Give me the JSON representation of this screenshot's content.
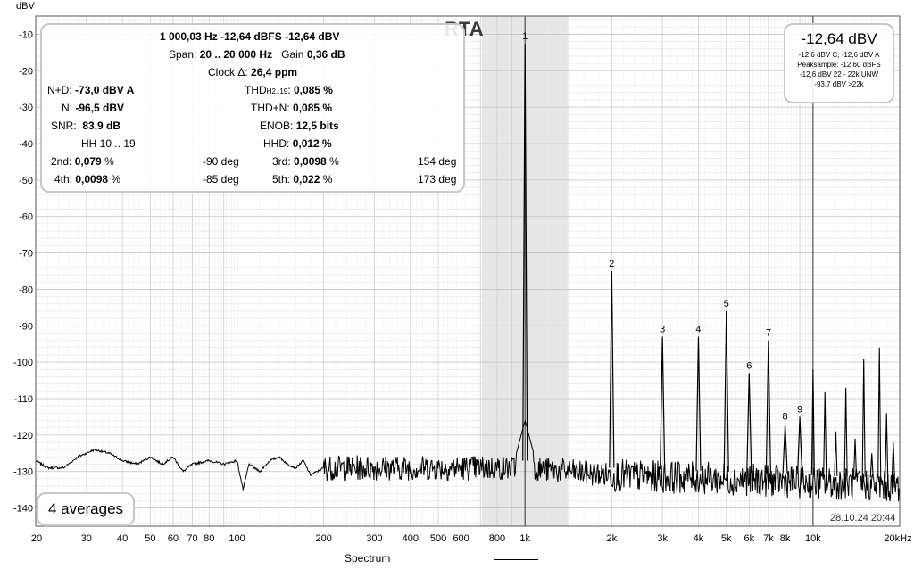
{
  "title": "RTA",
  "y_axis_unit": "dBV",
  "measurements": {
    "line1": "1 000,03 Hz  -12,64 dBFS  -12,64 dBV",
    "span_label": "Span:",
    "span_value": "20 .. 20 000 Hz",
    "gain_label": "Gain",
    "gain_value": "0,36 dB",
    "clock_label": "Clock Δ:",
    "clock_value": "26,4 ppm",
    "nd_label": "N+D:",
    "nd_value": "-73,0 dBV A",
    "thd_label": "THD",
    "thd_sub": "H2..19",
    "thd_colon": ":",
    "thd_value": "0,085 %",
    "n_label": "N:",
    "n_value": "-96,5 dBV",
    "thdn_label": "THD+N:",
    "thdn_value": "0,085 %",
    "snr_label": "SNR:",
    "snr_value": "83,9 dB",
    "enob_label": "ENOB:",
    "enob_value": "12,5 bits",
    "hh_label": "HH 10 .. 19",
    "hhd_label": "HHD:",
    "hhd_value": "0,012 %",
    "h2_label": "2nd:",
    "h2_value": "0,079",
    "h2_unit": " %",
    "h2_phase": "-90 deg",
    "h3_label": "3rd:",
    "h3_value": "0,0098",
    "h3_unit": " %",
    "h3_phase": "154 deg",
    "h4_label": "4th:",
    "h4_value": "0,0098",
    "h4_unit": " %",
    "h4_phase": "-85 deg",
    "h5_label": "5th:",
    "h5_value": "0,022",
    "h5_unit": " %",
    "h5_phase": "173 deg"
  },
  "level_box": {
    "main": "-12,64 dBV",
    "line1": "-12,6 dBV C, -12,6 dBV A",
    "line2": "Peaksample: -12,60 dBFS",
    "line3": "-12,6 dBV 22 - 22k UNW",
    "line4": "-93,7 dBV >22k"
  },
  "averages_label": "4 averages",
  "timestamp": "28.10.24 20:44",
  "legend": {
    "series_name": "Spectrum",
    "color": "#000000"
  },
  "chart_data": {
    "type": "line",
    "title": "RTA",
    "ylabel": "dBV",
    "xlabel": "",
    "x_scale": "log",
    "xlim": [
      20,
      20000
    ],
    "ylim": [
      -145,
      -5
    ],
    "grid": true,
    "x_ticks": [
      {
        "v": 20,
        "l": "20"
      },
      {
        "v": 30,
        "l": "30"
      },
      {
        "v": 40,
        "l": "40"
      },
      {
        "v": 50,
        "l": "50"
      },
      {
        "v": 60,
        "l": "60"
      },
      {
        "v": 70,
        "l": "70"
      },
      {
        "v": 80,
        "l": "80"
      },
      {
        "v": 100,
        "l": "100"
      },
      {
        "v": 200,
        "l": "200"
      },
      {
        "v": 300,
        "l": "300"
      },
      {
        "v": 400,
        "l": "400"
      },
      {
        "v": 500,
        "l": "500"
      },
      {
        "v": 600,
        "l": "600"
      },
      {
        "v": 800,
        "l": "800"
      },
      {
        "v": 1000,
        "l": "1k"
      },
      {
        "v": 2000,
        "l": "2k"
      },
      {
        "v": 3000,
        "l": "3k"
      },
      {
        "v": 4000,
        "l": "4k"
      },
      {
        "v": 5000,
        "l": "5k"
      },
      {
        "v": 6000,
        "l": "6k"
      },
      {
        "v": 7000,
        "l": "7k"
      },
      {
        "v": 8000,
        "l": "8k"
      },
      {
        "v": 10000,
        "l": "10k"
      },
      {
        "v": 20000,
        "l": "20kHz"
      }
    ],
    "y_ticks": [
      -10,
      -20,
      -30,
      -40,
      -50,
      -60,
      -70,
      -80,
      -90,
      -100,
      -110,
      -120,
      -130,
      -140
    ],
    "highlight_band": [
      707,
      1414
    ],
    "noise_floor": [
      [
        20,
        -127
      ],
      [
        22,
        -129
      ],
      [
        25,
        -129
      ],
      [
        28,
        -126
      ],
      [
        32,
        -124
      ],
      [
        36,
        -125
      ],
      [
        40,
        -127
      ],
      [
        45,
        -128
      ],
      [
        50,
        -126
      ],
      [
        55,
        -128
      ],
      [
        60,
        -126
      ],
      [
        65,
        -130
      ],
      [
        70,
        -128
      ],
      [
        80,
        -127
      ],
      [
        90,
        -128
      ],
      [
        100,
        -127
      ],
      [
        105,
        -135
      ],
      [
        110,
        -128
      ],
      [
        120,
        -130
      ],
      [
        130,
        -127
      ],
      [
        140,
        -126
      ],
      [
        150,
        -128
      ],
      [
        160,
        -129
      ],
      [
        170,
        -127
      ],
      [
        180,
        -131
      ],
      [
        200,
        -129
      ],
      [
        1000,
        -129
      ],
      [
        2000,
        -131
      ],
      [
        5000,
        -132
      ],
      [
        10000,
        -133
      ],
      [
        20000,
        -134
      ]
    ],
    "harmonics": [
      {
        "label": "1",
        "f": 1000,
        "y": -12.64
      },
      {
        "label": "2",
        "f": 2000,
        "y": -75
      },
      {
        "label": "3",
        "f": 3000,
        "y": -93
      },
      {
        "label": "4",
        "f": 4000,
        "y": -93
      },
      {
        "label": "5",
        "f": 5000,
        "y": -86
      },
      {
        "label": "6",
        "f": 6000,
        "y": -103
      },
      {
        "label": "7",
        "f": 7000,
        "y": -94
      },
      {
        "label": "8",
        "f": 8000,
        "y": -117
      },
      {
        "label": "9",
        "f": 9000,
        "y": -115
      }
    ],
    "other_peaks": [
      {
        "f": 10000,
        "y": -102
      },
      {
        "f": 11000,
        "y": -108
      },
      {
        "f": 12000,
        "y": -119
      },
      {
        "f": 13000,
        "y": -107
      },
      {
        "f": 14000,
        "y": -121
      },
      {
        "f": 15000,
        "y": -99
      },
      {
        "f": 16000,
        "y": -125
      },
      {
        "f": 17000,
        "y": -96
      },
      {
        "f": 18000,
        "y": -114
      },
      {
        "f": 19000,
        "y": -122
      }
    ]
  }
}
